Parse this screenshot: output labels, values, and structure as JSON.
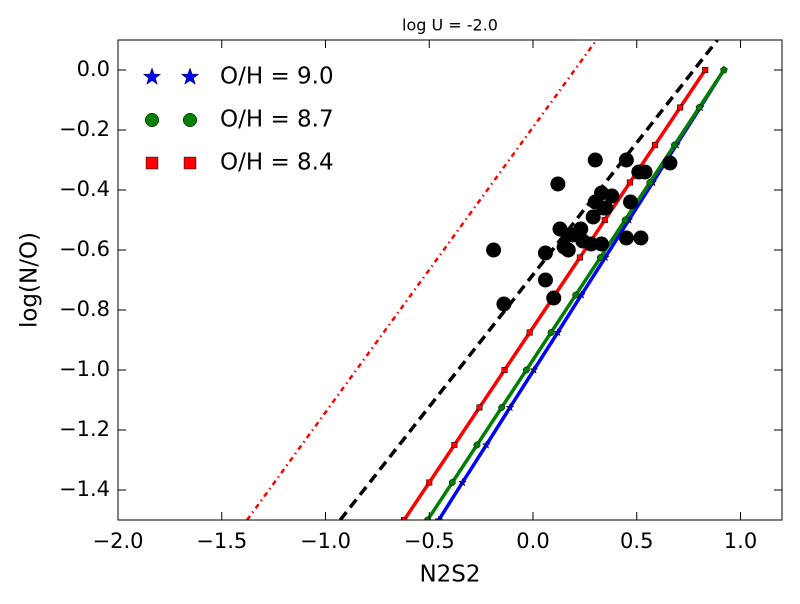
{
  "chart_data": {
    "type": "scatter",
    "title": "log U = -2.0",
    "x_label": "N2S2",
    "y_label": "log(N/O)",
    "xlim": [
      -2.0,
      1.2
    ],
    "ylim": [
      -1.5,
      0.1
    ],
    "xticks": [
      {
        "value": -2.0,
        "label": "−2.0"
      },
      {
        "value": -1.5,
        "label": "−1.5"
      },
      {
        "value": -1.0,
        "label": "−1.0"
      },
      {
        "value": -0.5,
        "label": "−0.5"
      },
      {
        "value": 0,
        "label": "0.0"
      },
      {
        "value": 0.5,
        "label": "0.5"
      },
      {
        "value": 1.0,
        "label": "1.0"
      }
    ],
    "yticks": [
      {
        "value": 0,
        "label": "0.0"
      },
      {
        "value": -0.2,
        "label": "−0.2"
      },
      {
        "value": -0.4,
        "label": "−0.4"
      },
      {
        "value": -0.6,
        "label": "−0.6"
      },
      {
        "value": -0.8,
        "label": "−0.8"
      },
      {
        "value": -1.0,
        "label": "−1.0"
      },
      {
        "value": -1.2,
        "label": "−1.2"
      },
      {
        "value": -1.4,
        "label": "−1.4"
      }
    ],
    "legend": "upper left",
    "series": [
      {
        "name": "O/H = 9.0",
        "color": "#0000ff",
        "marker": "star",
        "linestyle": "solid",
        "x": [
          -0.454,
          -0.34,
          -0.225,
          -0.111,
          0.004,
          0.119,
          0.233,
          0.348,
          0.462,
          0.577,
          0.691,
          0.806,
          0.92
        ],
        "values": [
          -1.5,
          -1.375,
          -1.25,
          -1.125,
          -1.0,
          -0.875,
          -0.75,
          -0.625,
          -0.5,
          -0.375,
          -0.25,
          -0.125,
          0
        ]
      },
      {
        "name": "O/H = 8.7",
        "color": "#008000",
        "marker": "circle",
        "linestyle": "solid",
        "x": [
          -0.508,
          -0.389,
          -0.27,
          -0.151,
          -0.032,
          0.087,
          0.206,
          0.325,
          0.444,
          0.563,
          0.682,
          0.801,
          0.92
        ],
        "values": [
          -1.5,
          -1.375,
          -1.25,
          -1.125,
          -1.0,
          -0.875,
          -0.75,
          -0.625,
          -0.5,
          -0.375,
          -0.25,
          -0.125,
          0
        ]
      },
      {
        "name": "O/H = 8.4",
        "color": "#ff0000",
        "marker": "square",
        "linestyle": "solid",
        "x": [
          -0.621,
          -0.5,
          -0.379,
          -0.258,
          -0.137,
          -0.016,
          0.105,
          0.226,
          0.346,
          0.467,
          0.588,
          0.709,
          0.83
        ],
        "values": [
          -1.5,
          -1.375,
          -1.25,
          -1.125,
          -1.0,
          -0.875,
          -0.75,
          -0.625,
          -0.5,
          -0.375,
          -0.25,
          -0.125,
          0
        ]
      },
      {
        "color": "#000000",
        "linestyle": "dashed",
        "x": [
          -0.929,
          0.889
        ],
        "values": [
          -1.5,
          0.1
        ]
      },
      {
        "color": "#ff0000",
        "linestyle": "dashdot",
        "x": [
          -1.378,
          0.306
        ],
        "values": [
          -1.5,
          0.1
        ]
      },
      {
        "color": "#000000",
        "marker": "bigcircle",
        "linestyle": "none",
        "x": [
          -0.19,
          -0.14,
          0.06,
          0.06,
          0.1,
          0.12,
          0.13,
          0.15,
          0.17,
          0.17,
          0.19,
          0.23,
          0.24,
          0.28,
          0.29,
          0.3,
          0.3,
          0.33,
          0.33,
          0.34,
          0.35,
          0.38,
          0.45,
          0.45,
          0.47,
          0.51,
          0.54,
          0.52,
          0.66
        ],
        "values": [
          -0.6,
          -0.78,
          -0.61,
          -0.7,
          -0.76,
          -0.38,
          -0.53,
          -0.59,
          -0.6,
          -0.55,
          -0.55,
          -0.53,
          -0.57,
          -0.58,
          -0.49,
          -0.3,
          -0.44,
          -0.41,
          -0.58,
          -0.46,
          -0.46,
          -0.42,
          -0.3,
          -0.56,
          -0.44,
          -0.34,
          -0.34,
          -0.56,
          -0.31
        ]
      }
    ]
  }
}
